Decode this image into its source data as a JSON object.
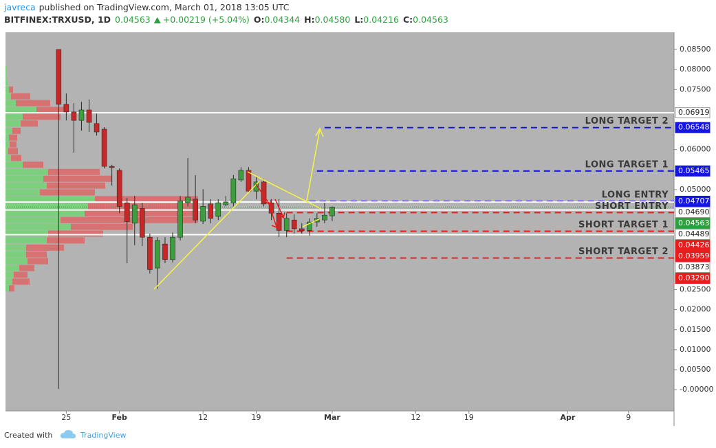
{
  "header": {
    "author": "javreca",
    "published": "published on TradingView.com, March 01, 2018 13:05 UTC",
    "symbol": "BITFINEX:TRXUSD, 1D",
    "last": "0.04563",
    "change": "+0.00219 (+5.04%)",
    "ohlc": [
      {
        "label": "O:",
        "value": "0.04344"
      },
      {
        "label": "H:",
        "value": "0.04580"
      },
      {
        "label": "L:",
        "value": "0.04216"
      },
      {
        "label": "C:",
        "value": "0.04563"
      }
    ]
  },
  "footer": {
    "created": "Created with",
    "brand": "TradingView"
  },
  "chart_data": {
    "type": "candlestick",
    "x": [
      "2018-01-24",
      "2018-01-25",
      "2018-01-26",
      "2018-01-27",
      "2018-01-28",
      "2018-01-29",
      "2018-01-30",
      "2018-01-31",
      "2018-02-01",
      "2018-02-02",
      "2018-02-03",
      "2018-02-04",
      "2018-02-05",
      "2018-02-06",
      "2018-02-07",
      "2018-02-08",
      "2018-02-09",
      "2018-02-10",
      "2018-02-11",
      "2018-02-12",
      "2018-02-13",
      "2018-02-14",
      "2018-02-15",
      "2018-02-16",
      "2018-02-17",
      "2018-02-18",
      "2018-02-19",
      "2018-02-20",
      "2018-02-21",
      "2018-02-22",
      "2018-02-23",
      "2018-02-24",
      "2018-02-25",
      "2018-02-26",
      "2018-02-27",
      "2018-02-28",
      "2018-03-01"
    ],
    "open": [
      0.085,
      0.0713,
      0.0694,
      0.0673,
      0.0699,
      0.0665,
      0.0651,
      0.0558,
      0.0548,
      0.0467,
      0.0416,
      0.0453,
      0.0381,
      0.0304,
      0.0364,
      0.0325,
      0.0381,
      0.0467,
      0.0476,
      0.0421,
      0.0464,
      0.0433,
      0.0462,
      0.0467,
      0.0524,
      0.0548,
      0.0496,
      0.0519,
      0.0467,
      0.0441,
      0.0398,
      0.0424,
      0.0402,
      0.0398,
      0.0419,
      0.0424,
      0.04344
    ],
    "high": [
      0.085,
      0.074,
      0.0716,
      0.0719,
      0.0725,
      0.069,
      0.0656,
      0.0562,
      0.0553,
      0.0479,
      0.0484,
      0.0467,
      0.039,
      0.0381,
      0.0381,
      0.0393,
      0.0484,
      0.0579,
      0.0536,
      0.0501,
      0.0476,
      0.0476,
      0.0484,
      0.0536,
      0.0556,
      0.0556,
      0.0531,
      0.0527,
      0.0476,
      0.0476,
      0.0441,
      0.0438,
      0.0416,
      0.0428,
      0.0441,
      0.0467,
      0.0458
    ],
    "low": [
      0.0002,
      0.0673,
      0.0592,
      0.0647,
      0.0644,
      0.0635,
      0.0553,
      0.051,
      0.0441,
      0.0316,
      0.0361,
      0.0359,
      0.029,
      0.0252,
      0.0316,
      0.0318,
      0.0373,
      0.0458,
      0.0416,
      0.0414,
      0.0416,
      0.0424,
      0.0458,
      0.0458,
      0.0519,
      0.0493,
      0.0476,
      0.0458,
      0.0424,
      0.0381,
      0.0381,
      0.039,
      0.039,
      0.0385,
      0.0407,
      0.0416,
      0.04216
    ],
    "close": [
      0.0713,
      0.0694,
      0.0673,
      0.0699,
      0.0668,
      0.0644,
      0.0558,
      0.0555,
      0.0458,
      0.042,
      0.0462,
      0.0381,
      0.03,
      0.0373,
      0.0325,
      0.0381,
      0.0472,
      0.0481,
      0.0424,
      0.0458,
      0.0428,
      0.0467,
      0.0469,
      0.0527,
      0.0548,
      0.0496,
      0.0519,
      0.0464,
      0.0441,
      0.0398,
      0.0428,
      0.0402,
      0.0397,
      0.0419,
      0.0428,
      0.0436,
      0.04563
    ],
    "up_color": "#3c9e3c",
    "down_color": "#c62828",
    "xlim": [
      "2018-01-17",
      "2018-04-15"
    ],
    "xticks": [
      {
        "value": "2018-01-25",
        "label": "25"
      },
      {
        "value": "2018-02-01",
        "label": "Feb"
      },
      {
        "value": "2018-02-12",
        "label": "12"
      },
      {
        "value": "2018-02-19",
        "label": "19"
      },
      {
        "value": "2018-03-01",
        "label": "Mar"
      },
      {
        "value": "2018-03-12",
        "label": "12"
      },
      {
        "value": "2018-03-19",
        "label": "19"
      },
      {
        "value": "2018-04-01",
        "label": "Apr"
      },
      {
        "value": "2018-04-09",
        "label": "9"
      }
    ],
    "ylim": [
      -0.0053,
      0.0893
    ],
    "yticks": [
      {
        "value": 0.085,
        "label": "0.08500"
      },
      {
        "value": 0.08,
        "label": "0.08000"
      },
      {
        "value": 0.075,
        "label": "0.07500"
      },
      {
        "value": 0.06,
        "label": "0.06000"
      },
      {
        "value": 0.05,
        "label": "0.05000"
      },
      {
        "value": 0.025,
        "label": "0.02500"
      },
      {
        "value": 0.02,
        "label": "0.02000"
      },
      {
        "value": 0.015,
        "label": "0.01500"
      },
      {
        "value": 0.01,
        "label": "0.01000"
      },
      {
        "value": 0.005,
        "label": "0.00500"
      },
      {
        "value": 0,
        "label": "-0.00000"
      }
    ],
    "grid": false,
    "levels": [
      {
        "value": 0.06919,
        "label": "0.06919",
        "style": "solid",
        "color": "#ffffff"
      },
      {
        "value": 0.06548,
        "label": "0.06548",
        "name": "LONG TARGET 2",
        "style": "dashed",
        "color": "#1515e0",
        "from": "2018-02-28"
      },
      {
        "value": 0.05465,
        "label": "0.05465",
        "name": "LONG TARGET 1",
        "style": "dashed",
        "color": "#1515e0",
        "from": "2018-02-27"
      },
      {
        "value": 0.04707,
        "label": "0.04707",
        "name": "LONG ENTRY",
        "style": "dashed",
        "color": "#1515e0",
        "from": "2018-02-26"
      },
      {
        "value": 0.0469,
        "label": "0.04690",
        "style": "solid",
        "color": "#ffffff"
      },
      {
        "value": 0.04563,
        "label": "0.04563",
        "style": "dotted",
        "color": "#2e9e3e"
      },
      {
        "value": 0.04489,
        "label": "0.04489",
        "style": "solid",
        "color": "#ffffff"
      },
      {
        "value": 0.04426,
        "label": "0.04426",
        "name": "SHORT ENTRY",
        "style": "dashed",
        "color": "#e81c1c",
        "from": "2018-02-23"
      },
      {
        "value": 0.03959,
        "label": "0.03959",
        "name": "SHORT TARGET 1",
        "style": "dashed",
        "color": "#e81c1c",
        "from": "2018-02-23"
      },
      {
        "value": 0.03873,
        "label": "0.03873",
        "style": "solid",
        "color": "#ffffff"
      },
      {
        "value": 0.0329,
        "label": "0.03290",
        "name": "SHORT TARGET 2",
        "style": "dashed",
        "color": "#e81c1c",
        "from": "2018-02-23"
      }
    ],
    "volume_profile": {
      "prices": [
        0.0802,
        0.0785,
        0.0768,
        0.075,
        0.0733,
        0.0716,
        0.0699,
        0.0682,
        0.0665,
        0.0647,
        0.063,
        0.0613,
        0.0596,
        0.0579,
        0.0562,
        0.0544,
        0.0527,
        0.051,
        0.0493,
        0.0476,
        0.0458,
        0.0441,
        0.0424,
        0.0407,
        0.039,
        0.0373,
        0.0355,
        0.0338,
        0.0321,
        0.0304,
        0.0287,
        0.027,
        0.0253
      ],
      "up": [
        2,
        2,
        3,
        5,
        8,
        15,
        45,
        25,
        22,
        10,
        5,
        6,
        4,
        8,
        25,
        62,
        55,
        60,
        50,
        130,
        120,
        115,
        80,
        95,
        62,
        60,
        30,
        30,
        32,
        20,
        12,
        10,
        5
      ],
      "down": [
        0,
        0,
        0,
        6,
        28,
        50,
        40,
        55,
        25,
        12,
        12,
        10,
        14,
        15,
        30,
        75,
        100,
        85,
        80,
        150,
        160,
        165,
        200,
        90,
        80,
        55,
        55,
        30,
        30,
        22,
        20,
        25,
        8
      ],
      "up_color": "#7ccf7c",
      "down_color": "#d96a6a"
    }
  }
}
